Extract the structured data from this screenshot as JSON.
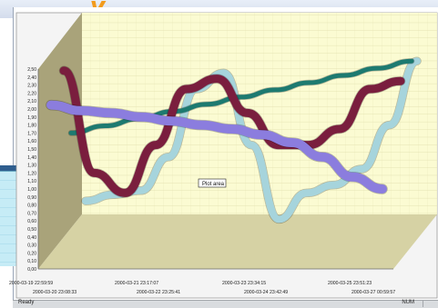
{
  "header": {
    "title_fragment": "...y..."
  },
  "chart_data": {
    "type": "line",
    "yticks": [
      "2,50",
      "2,40",
      "2,30",
      "2,20",
      "2,10",
      "2,00",
      "1,90",
      "1,80",
      "1,70",
      "1,60",
      "1,50",
      "1,40",
      "1,30",
      "1,20",
      "1,10",
      "1,00",
      "0,90",
      "0,80",
      "0,70",
      "0,60",
      "0,50",
      "0,40",
      "0,30",
      "0,20",
      "0,10",
      "0,00"
    ],
    "xticks_row1": [
      "2000-03-19 22:59:59",
      "2000-03-21 23:17:07",
      "2000-03-23 23:34:15",
      "2000-03-25 23:51:23"
    ],
    "xticks_row2": [
      "2000-03-20 23:08:33",
      "2000-03-22 23:25:41",
      "2000-03-24 23:42:49",
      "2000-03-27 00:59:57"
    ],
    "annotation": "Plot area",
    "ylim": [
      0,
      2.5
    ],
    "series": [
      {
        "color": "#7a1e3e",
        "values": [
          2.48,
          1.2,
          0.95,
          1.55,
          2.25,
          2.38,
          1.95,
          1.55,
          1.55,
          1.75,
          2.25,
          2.35
        ]
      },
      {
        "color": "#1d7a70",
        "values": [
          1.7,
          1.79,
          1.88,
          1.97,
          2.06,
          2.15,
          2.24,
          2.33,
          2.42,
          2.51,
          2.6
        ]
      },
      {
        "color": "#8b7dde",
        "values": [
          2.05,
          1.98,
          1.95,
          1.9,
          1.85,
          1.8,
          1.75,
          1.68,
          1.58,
          1.4,
          1.15,
          1.0
        ]
      },
      {
        "color": "#a6d4dc",
        "values": [
          0.85,
          0.93,
          0.98,
          1.4,
          2.25,
          2.45,
          1.55,
          0.62,
          0.95,
          1.05,
          1.25,
          1.8,
          2.6
        ]
      }
    ]
  },
  "status": {
    "ready": "Ready",
    "num": "NUM"
  }
}
